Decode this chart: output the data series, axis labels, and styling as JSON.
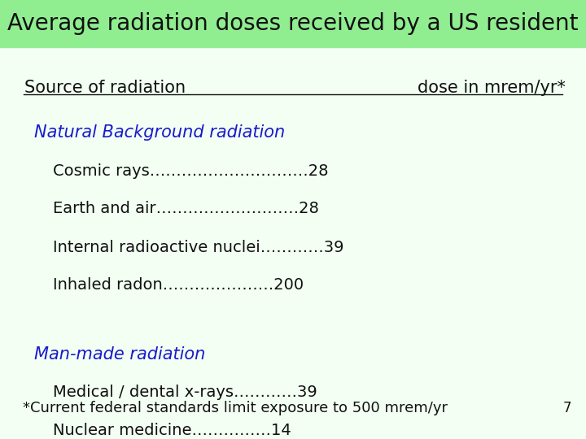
{
  "title_bg_color": "#90EE90",
  "body_bg_color": "#f2fff2",
  "title_pre": "Average radiation doses received by a ",
  "title_bold": "US",
  "title_post": " resident",
  "header_left": "Source of radiation",
  "header_right": "dose in mrem/yr*",
  "section1_title": "Natural Background radiation",
  "section1_items": [
    "Cosmic rays…………………………28",
    "Earth and air………………………28",
    "Internal radioactive nuclei…………39",
    "Inhaled radon…………………200"
  ],
  "section2_title": "Man-made radiation",
  "section2_items": [
    "Medical / dental x-rays…………39",
    "Nuclear medicine……………14"
  ],
  "footnote": "*Current federal standards limit exposure to 500 mrem/yr",
  "page_number": "7",
  "blue_color": "#1a1acd",
  "black_color": "#111111"
}
